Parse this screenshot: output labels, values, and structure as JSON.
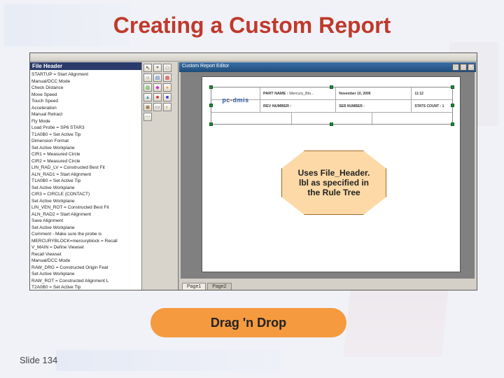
{
  "slide": {
    "title": "Creating a Custom Report",
    "number": "Slide 134"
  },
  "callout": {
    "text": "Uses File_Header. lbl as specified in the Rule Tree"
  },
  "dragdrop": {
    "label": "Drag 'n Drop"
  },
  "tree": {
    "header": "File Header",
    "items": [
      "STARTUP = Start Alignment",
      "Manual/DCC Mode",
      "Check Distance",
      "Move Speed",
      "Touch Speed",
      "Acceleration",
      "Manual Retract",
      "Fly Mode",
      "Load Probe = SP6 STAR3",
      "T1A0B0 = Set Active Tip",
      "Dimension Format",
      "Set Active Workplane",
      "CIR1 = Measured Circle",
      "CIR2 = Measured Circle",
      "LIN_RAD_LV = Constructed Best Fit",
      "ALN_RAD1 = Start Alignment",
      "T1A0B0 = Set Active Tip",
      "Set Active Workplane",
      "CIR3 = CIRCLE (CONTACT)",
      "Set Active Workplane",
      "LIN_VEN_ROT = Constructed Best Fit",
      "ALN_RAD2 = Start Alignment",
      "Save Alignment",
      "Set Active Workplane",
      "Comment - Make sure the probe is",
      "MERCURYBLOCK=mercuryblock = Recall",
      "V_MAIN = Define Viewset",
      "Recall Viewset",
      "Manual/DCC Mode",
      "RAW_DRG = Constructed Origin Feat",
      "Set Active Workplane",
      "RAW_ROT = Constructed Alignment L",
      "T2A0B0 = Set Active Tip"
    ]
  },
  "tools": [
    {
      "c": "#222222",
      "g": "↖"
    },
    {
      "c": "#222222",
      "g": "⌖"
    },
    {
      "c": "#444444",
      "g": "□"
    },
    {
      "c": "#444444",
      "g": "○"
    },
    {
      "c": "#3366cc",
      "g": "▤"
    },
    {
      "c": "#cc3333",
      "g": "▦"
    },
    {
      "c": "#339933",
      "g": "▥"
    },
    {
      "c": "#cc33cc",
      "g": "◆"
    },
    {
      "c": "#ff9933",
      "g": "●"
    },
    {
      "c": "#3399cc",
      "g": "▲"
    },
    {
      "c": "#cc3333",
      "g": "■"
    },
    {
      "c": "#3333cc",
      "g": "■"
    },
    {
      "c": "#996633",
      "g": "▣"
    },
    {
      "c": "#666666",
      "g": "▭"
    },
    {
      "c": "#cc9933",
      "g": "◐"
    },
    {
      "c": "#555555",
      "g": "⋯"
    }
  ],
  "editor": {
    "title": "Custom Report Editor",
    "tab1": "Page1",
    "tab2": "Page2"
  },
  "headerBlock": {
    "logo_a": "pc",
    "logo_b": "dmis",
    "row1": [
      {
        "k": "PART NAME :",
        "v": "Mercury_Blo..."
      },
      {
        "k": "",
        "v": "November 10, 2006"
      },
      {
        "k": "",
        "v": "11:12"
      }
    ],
    "row2": [
      {
        "k": "REV NUMBER :",
        "v": ""
      },
      {
        "k": "SER NUMBER :",
        "v": ""
      },
      {
        "k": "STATS COUNT :",
        "v": "1"
      }
    ]
  },
  "colors": {
    "title": "#c0392b",
    "callout_bg": "#fcd9a6",
    "dragdrop_bg": "#f59a3e"
  }
}
